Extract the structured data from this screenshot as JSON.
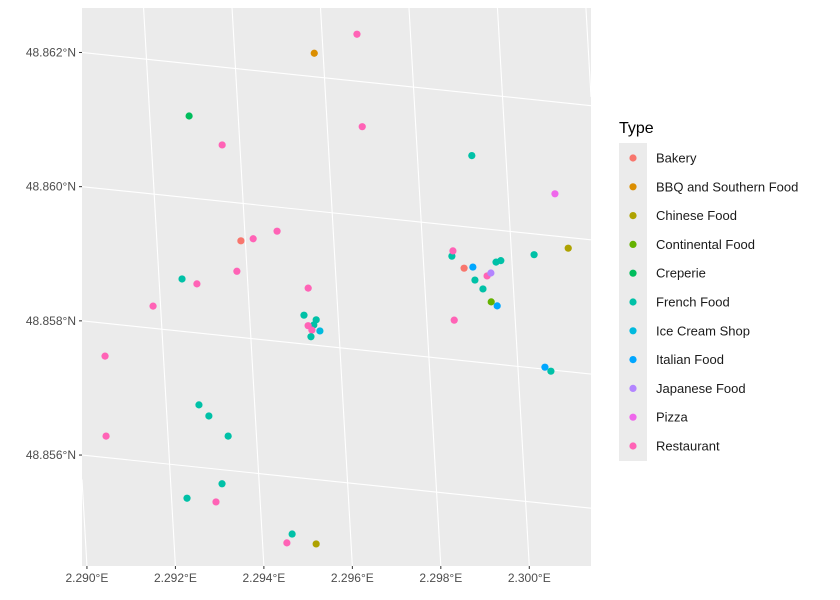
{
  "chart_data": {
    "type": "scatter",
    "title": "",
    "xlabel": "",
    "ylabel": "",
    "projection": "map (rotated graticule)",
    "grid": true,
    "xlim": [
      2.2899,
      2.3013
    ],
    "ylim": [
      48.8546,
      48.8627
    ],
    "x_ticks": [
      {
        "value": 2.29,
        "label": "2.290°E"
      },
      {
        "value": 2.292,
        "label": "2.292°E"
      },
      {
        "value": 2.294,
        "label": "2.294°E"
      },
      {
        "value": 2.296,
        "label": "2.296°E"
      },
      {
        "value": 2.298,
        "label": "2.298°E"
      },
      {
        "value": 2.3,
        "label": "2.300°E"
      }
    ],
    "y_ticks": [
      {
        "value": 48.856,
        "label": "48.856°N"
      },
      {
        "value": 48.858,
        "label": "48.858°N"
      },
      {
        "value": 48.86,
        "label": "48.860°N"
      },
      {
        "value": 48.862,
        "label": "48.862°N"
      }
    ],
    "legend": {
      "title": "Type",
      "position": "right",
      "entries": [
        {
          "name": "Bakery",
          "color": "#F8766D"
        },
        {
          "name": "BBQ and Southern Food",
          "color": "#DB8E00"
        },
        {
          "name": "Chinese Food",
          "color": "#AEA200"
        },
        {
          "name": "Continental Food",
          "color": "#64B200"
        },
        {
          "name": "Creperie",
          "color": "#00BD5C"
        },
        {
          "name": "French Food",
          "color": "#00C1A7"
        },
        {
          "name": "Ice Cream Shop",
          "color": "#00BADE"
        },
        {
          "name": "Italian Food",
          "color": "#00A6FF"
        },
        {
          "name": "Japanese Food",
          "color": "#B385FF"
        },
        {
          "name": "Pizza",
          "color": "#EF67EB"
        },
        {
          "name": "Restaurant",
          "color": "#FF63B6"
        }
      ]
    },
    "points": [
      {
        "lon": 2.29679,
        "lat": 48.8627,
        "type": "Restaurant"
      },
      {
        "lon": 2.2958,
        "lat": 48.86235,
        "type": "BBQ and Southern Food"
      },
      {
        "lon": 2.29289,
        "lat": 48.86122,
        "type": "Creperie"
      },
      {
        "lon": 2.2936,
        "lat": 48.86084,
        "type": "Restaurant"
      },
      {
        "lon": 2.29679,
        "lat": 48.86133,
        "type": "Restaurant"
      },
      {
        "lon": 2.29923,
        "lat": 48.86107,
        "type": "French Food"
      },
      {
        "lon": 2.30106,
        "lat": 48.86063,
        "type": "Pizza"
      },
      {
        "lon": 2.2939,
        "lat": 48.85944,
        "type": "Bakery"
      },
      {
        "lon": 2.29418,
        "lat": 48.85949,
        "type": "Restaurant"
      },
      {
        "lon": 2.29473,
        "lat": 48.85964,
        "type": "Restaurant"
      },
      {
        "lon": 2.29865,
        "lat": 48.85954,
        "type": "French Food"
      },
      {
        "lon": 2.29868,
        "lat": 48.85962,
        "type": "Restaurant"
      },
      {
        "lon": 2.30129,
        "lat": 48.85984,
        "type": "Chinese Food"
      },
      {
        "lon": 2.30051,
        "lat": 48.85969,
        "type": "French Food"
      },
      {
        "lon": 2.29964,
        "lat": 48.85952,
        "type": "French Food"
      },
      {
        "lon": 2.29975,
        "lat": 48.85955,
        "type": "French Food"
      },
      {
        "lon": 2.29891,
        "lat": 48.85938,
        "type": "Bakery"
      },
      {
        "lon": 2.29911,
        "lat": 48.85941,
        "type": "Italian Food"
      },
      {
        "lon": 2.29942,
        "lat": 48.8593,
        "type": "Restaurant"
      },
      {
        "lon": 2.29951,
        "lat": 48.85935,
        "type": "Japanese Food"
      },
      {
        "lon": 2.29914,
        "lat": 48.85922,
        "type": "French Food"
      },
      {
        "lon": 2.29931,
        "lat": 48.8591,
        "type": "French Food"
      },
      {
        "lon": 2.29948,
        "lat": 48.85892,
        "type": "Continental Food"
      },
      {
        "lon": 2.29961,
        "lat": 48.85887,
        "type": "Italian Food"
      },
      {
        "lon": 2.29252,
        "lat": 48.85878,
        "type": "French Food"
      },
      {
        "lon": 2.29285,
        "lat": 48.85873,
        "type": "Restaurant"
      },
      {
        "lon": 2.29377,
        "lat": 48.85898,
        "type": "Restaurant"
      },
      {
        "lon": 2.29536,
        "lat": 48.85884,
        "type": "Restaurant"
      },
      {
        "lon": 2.29183,
        "lat": 48.85833,
        "type": "Restaurant"
      },
      {
        "lon": 2.29523,
        "lat": 48.85843,
        "type": "French Food"
      },
      {
        "lon": 2.2955,
        "lat": 48.85838,
        "type": "French Food"
      },
      {
        "lon": 2.29544,
        "lat": 48.8583,
        "type": "French Food"
      },
      {
        "lon": 2.29531,
        "lat": 48.85828,
        "type": "Restaurant"
      },
      {
        "lon": 2.29539,
        "lat": 48.85822,
        "type": "Restaurant"
      },
      {
        "lon": 2.29557,
        "lat": 48.85822,
        "type": "Ice Cream Shop"
      },
      {
        "lon": 2.29536,
        "lat": 48.85812,
        "type": "French Food"
      },
      {
        "lon": 2.29862,
        "lat": 48.85859,
        "type": "Restaurant"
      },
      {
        "lon": 2.29068,
        "lat": 48.85751,
        "type": "Restaurant"
      },
      {
        "lon": 2.30061,
        "lat": 48.85803,
        "type": "Italian Food"
      },
      {
        "lon": 2.30074,
        "lat": 48.85798,
        "type": "French Food"
      },
      {
        "lon": 2.29274,
        "lat": 48.85693,
        "type": "French Food"
      },
      {
        "lon": 2.29295,
        "lat": 48.85678,
        "type": "French Food"
      },
      {
        "lon": 2.29336,
        "lat": 48.85651,
        "type": "French Food"
      },
      {
        "lon": 2.2906,
        "lat": 48.85632,
        "type": "Restaurant"
      },
      {
        "lon": 2.29316,
        "lat": 48.85579,
        "type": "French Food"
      },
      {
        "lon": 2.29235,
        "lat": 48.85552,
        "type": "French Food"
      },
      {
        "lon": 2.293,
        "lat": 48.85551,
        "type": "Restaurant"
      },
      {
        "lon": 2.29468,
        "lat": 48.85515,
        "type": "French Food"
      },
      {
        "lon": 2.29455,
        "lat": 48.85501,
        "type": "Restaurant"
      },
      {
        "lon": 2.29521,
        "lat": 48.85504,
        "type": "Chinese Food"
      }
    ]
  },
  "colors": {
    "panel_background": "#EBEBEB",
    "grid": "#FFFFFF",
    "axis_text": "#4D4D4D"
  }
}
